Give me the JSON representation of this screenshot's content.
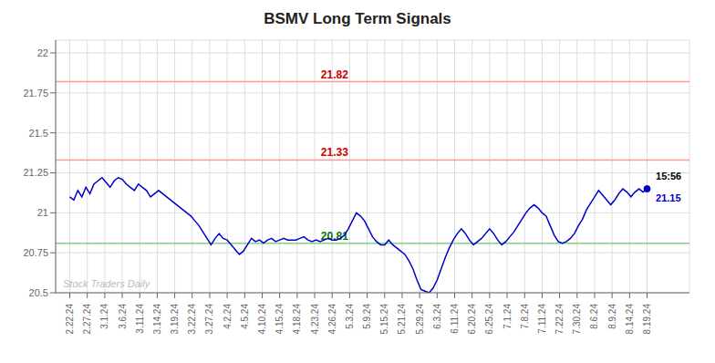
{
  "chart_data": {
    "type": "line",
    "title": "BSMV Long Term Signals",
    "color": "#0000cc",
    "grid": true,
    "x": [
      0,
      1,
      2,
      3,
      4,
      5,
      6,
      7,
      8,
      9,
      10,
      11,
      12,
      13,
      14,
      15,
      16,
      17,
      18,
      19,
      20,
      21,
      22,
      23,
      24,
      25,
      26,
      27,
      28,
      29,
      30,
      31,
      32,
      33,
      34,
      35,
      36,
      37,
      38,
      39,
      40,
      41,
      42,
      43,
      44,
      45,
      46,
      47,
      48,
      49,
      50,
      51,
      52,
      53,
      54,
      55,
      56,
      57,
      58,
      59,
      60,
      61,
      62,
      63,
      64,
      65,
      66,
      67,
      68,
      69,
      70,
      71,
      72,
      73,
      74,
      75,
      76,
      77,
      78,
      79,
      80,
      81,
      82,
      83,
      84,
      85,
      86,
      87,
      88,
      89,
      90,
      91,
      92,
      93,
      94,
      95,
      96,
      97,
      98,
      99,
      100,
      101,
      102,
      103,
      104,
      105,
      106,
      107,
      108,
      109,
      110,
      111,
      112,
      113,
      114,
      115,
      116,
      117,
      118,
      119,
      120,
      121,
      122,
      123,
      124,
      125,
      126,
      127,
      128,
      129,
      130,
      131,
      132,
      133,
      134,
      135,
      136,
      137,
      138,
      139,
      140,
      141,
      142,
      143
    ],
    "values": [
      21.1,
      21.08,
      21.14,
      21.1,
      21.16,
      21.12,
      21.18,
      21.2,
      21.22,
      21.19,
      21.16,
      21.2,
      21.22,
      21.21,
      21.18,
      21.16,
      21.14,
      21.18,
      21.16,
      21.14,
      21.1,
      21.12,
      21.14,
      21.12,
      21.1,
      21.08,
      21.06,
      21.04,
      21.02,
      21.0,
      20.98,
      20.95,
      20.92,
      20.88,
      20.84,
      20.8,
      20.84,
      20.87,
      20.84,
      20.83,
      20.8,
      20.77,
      20.74,
      20.76,
      20.8,
      20.84,
      20.82,
      20.83,
      20.81,
      20.83,
      20.84,
      20.82,
      20.83,
      20.84,
      20.83,
      20.83,
      20.83,
      20.84,
      20.85,
      20.83,
      20.82,
      20.83,
      20.82,
      20.83,
      20.84,
      20.83,
      20.83,
      20.84,
      20.86,
      20.9,
      20.95,
      21.0,
      20.98,
      20.95,
      20.9,
      20.85,
      20.82,
      20.8,
      20.8,
      20.83,
      20.8,
      20.78,
      20.76,
      20.74,
      20.7,
      20.65,
      20.58,
      20.52,
      20.51,
      20.5,
      20.53,
      20.58,
      20.65,
      20.72,
      20.78,
      20.83,
      20.87,
      20.9,
      20.87,
      20.83,
      20.8,
      20.82,
      20.84,
      20.87,
      20.9,
      20.87,
      20.83,
      20.8,
      20.82,
      20.85,
      20.88,
      20.92,
      20.96,
      21.0,
      21.03,
      21.05,
      21.03,
      21.0,
      20.98,
      20.92,
      20.86,
      20.82,
      20.81,
      20.82,
      20.84,
      20.87,
      20.92,
      20.96,
      21.02,
      21.06,
      21.1,
      21.14,
      21.11,
      21.08,
      21.05,
      21.08,
      21.12,
      21.15,
      21.13,
      21.1,
      21.13,
      21.15,
      21.13,
      21.15
    ],
    "xlim": [
      -3.5,
      153.5
    ],
    "xticks": [
      {
        "value": 0,
        "label": "2.22.24"
      },
      {
        "value": 4.333333333333333,
        "label": "2.27.24"
      },
      {
        "value": 8.666666666666666,
        "label": "3.1.24"
      },
      {
        "value": 13,
        "label": "3.6.24"
      },
      {
        "value": 17.333333333333332,
        "label": "3.11.24"
      },
      {
        "value": 21.666666666666668,
        "label": "3.14.24"
      },
      {
        "value": 26,
        "label": "3.19.24"
      },
      {
        "value": 30.333333333333332,
        "label": "3.22.24"
      },
      {
        "value": 34.666666666666664,
        "label": "3.27.24"
      },
      {
        "value": 39,
        "label": "4.2.24"
      },
      {
        "value": 43.333333333333336,
        "label": "4.5.24"
      },
      {
        "value": 47.666666666666664,
        "label": "4.10.24"
      },
      {
        "value": 52,
        "label": "4.15.24"
      },
      {
        "value": 56.333333333333336,
        "label": "4.18.24"
      },
      {
        "value": 60.666666666666664,
        "label": "4.23.24"
      },
      {
        "value": 65,
        "label": "4.26.24"
      },
      {
        "value": 69.33333333333333,
        "label": "5.3.24"
      },
      {
        "value": 73.66666666666667,
        "label": "5.9.24"
      },
      {
        "value": 78,
        "label": "5.15.24"
      },
      {
        "value": 82.33333333333333,
        "label": "5.21.24"
      },
      {
        "value": 86.66666666666667,
        "label": "5.29.24"
      },
      {
        "value": 91,
        "label": "6.3.24"
      },
      {
        "value": 95.33333333333333,
        "label": "6.11.24"
      },
      {
        "value": 99.66666666666667,
        "label": "6.20.24"
      },
      {
        "value": 104,
        "label": "6.25.24"
      },
      {
        "value": 108.33333333333333,
        "label": "7.1.24"
      },
      {
        "value": 112.66666666666667,
        "label": "7.8.24"
      },
      {
        "value": 117,
        "label": "7.11.24"
      },
      {
        "value": 121.33333333333333,
        "label": "7.22.24"
      },
      {
        "value": 125.66666666666667,
        "label": "7.30.24"
      },
      {
        "value": 130,
        "label": "8.6.24"
      },
      {
        "value": 134.33333333333334,
        "label": "8.9.24"
      },
      {
        "value": 138.66666666666666,
        "label": "8.14.24"
      },
      {
        "value": 143,
        "label": "8.19.24"
      }
    ],
    "ylim": [
      20.5,
      22.08
    ],
    "yticks": [
      20.5,
      20.75,
      21,
      21.25,
      21.5,
      21.75,
      22
    ],
    "annotations": [
      {
        "type": "hline",
        "y": 21.82,
        "label": "21.82",
        "color": "#ff9999",
        "label_color": "#cc0000"
      },
      {
        "type": "hline",
        "y": 21.33,
        "label": "21.33",
        "color": "#ff9999",
        "label_color": "#cc0000"
      },
      {
        "type": "hline",
        "y": 20.81,
        "label": "20.81",
        "color": "#88cc88",
        "label_color": "#007700"
      },
      {
        "type": "last_time",
        "text": "15:56",
        "color": "#000000"
      },
      {
        "type": "last_price",
        "text": "21.15",
        "color": "#0000cc"
      },
      {
        "type": "watermark",
        "text": "Stock Traders Daily",
        "color": "#bbbbbb"
      }
    ]
  }
}
